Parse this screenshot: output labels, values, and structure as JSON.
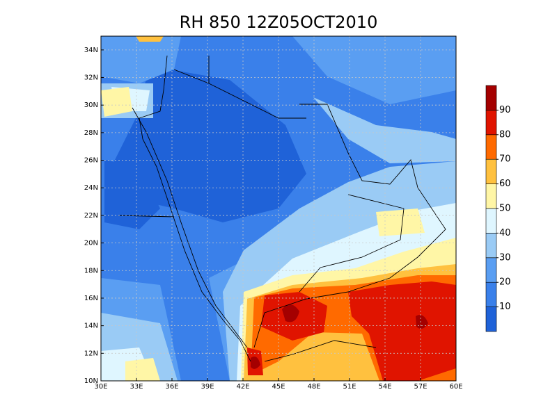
{
  "title": "RH 850 12Z05OCT2010",
  "map": {
    "xlim": [
      30,
      60
    ],
    "ylim": [
      10,
      35
    ],
    "grid": true,
    "xticks": [
      {
        "value": 30,
        "label": "30E"
      },
      {
        "value": 33,
        "label": "33E"
      },
      {
        "value": 36,
        "label": "36E"
      },
      {
        "value": 39,
        "label": "39E"
      },
      {
        "value": 42,
        "label": "42E"
      },
      {
        "value": 45,
        "label": "45E"
      },
      {
        "value": 48,
        "label": "48E"
      },
      {
        "value": 51,
        "label": "51E"
      },
      {
        "value": 54,
        "label": "54E"
      },
      {
        "value": 57,
        "label": "57E"
      },
      {
        "value": 60,
        "label": "60E"
      }
    ],
    "yticks": [
      {
        "value": 10,
        "label": "10N"
      },
      {
        "value": 12,
        "label": "12N"
      },
      {
        "value": 14,
        "label": "14N"
      },
      {
        "value": 16,
        "label": "16N"
      },
      {
        "value": 18,
        "label": "18N"
      },
      {
        "value": 20,
        "label": "20N"
      },
      {
        "value": 22,
        "label": "22N"
      },
      {
        "value": 24,
        "label": "24N"
      },
      {
        "value": 26,
        "label": "26N"
      },
      {
        "value": 28,
        "label": "28N"
      },
      {
        "value": 30,
        "label": "30N"
      },
      {
        "value": 32,
        "label": "32N"
      },
      {
        "value": 34,
        "label": "34N"
      }
    ]
  },
  "colorbar": {
    "lim": [
      0,
      100
    ],
    "levels": [
      10,
      20,
      30,
      40,
      50,
      60,
      70,
      80,
      90
    ],
    "colors": [
      "#1f62d8",
      "#3a80ea",
      "#5a9ef2",
      "#9acbf5",
      "#dff6ff",
      "#fff6a6",
      "#ffc13f",
      "#ff6a00",
      "#e01400",
      "#a40000"
    ]
  }
}
